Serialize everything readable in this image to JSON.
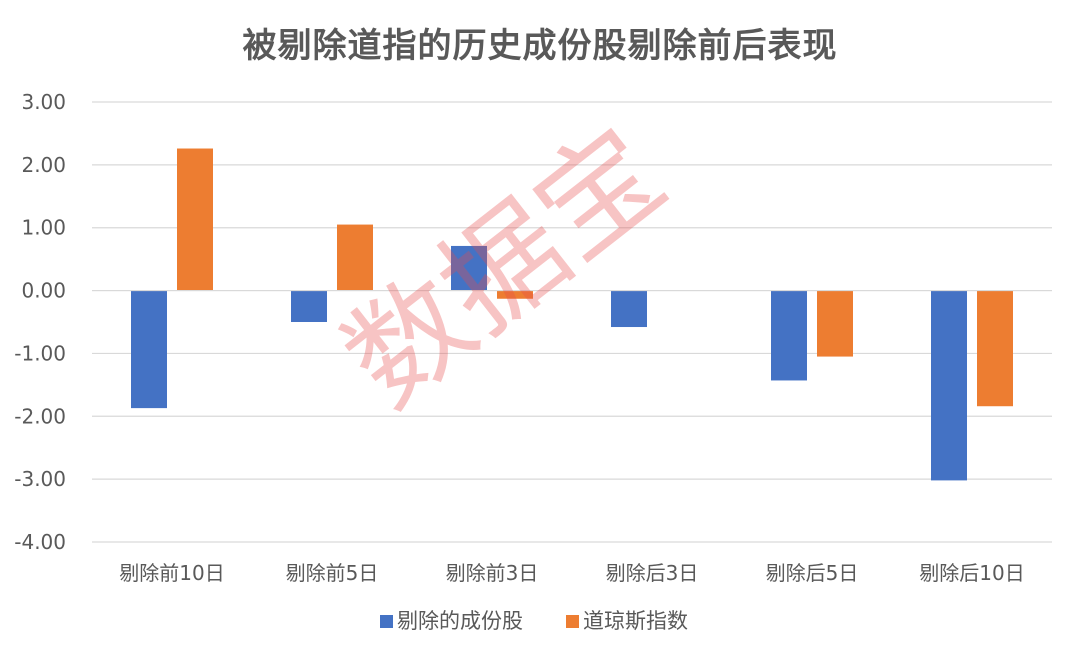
{
  "chart_data": {
    "type": "bar",
    "title": "被剔除道指的历史成份股剔除前后表现",
    "categories": [
      "剔除前10日",
      "剔除前5日",
      "剔除前3日",
      "剔除后3日",
      "剔除后5日",
      "剔除后10日"
    ],
    "series": [
      {
        "name": "剔除的成份股",
        "color": "#4472C4",
        "values": [
          -1.87,
          -0.5,
          0.71,
          -0.58,
          -1.43,
          -3.02
        ]
      },
      {
        "name": "道琼斯指数",
        "color": "#ED7D31",
        "values": [
          2.26,
          1.05,
          -0.13,
          0.0,
          -1.05,
          -1.84
        ]
      }
    ],
    "yticks": [
      "3.00",
      "2.00",
      "1.00",
      "0.00",
      "-1.00",
      "-2.00",
      "-3.00",
      "-4.00"
    ],
    "ylim": [
      -4,
      3
    ],
    "grid": true,
    "legend_position": "bottom",
    "watermark": "数据宝"
  }
}
